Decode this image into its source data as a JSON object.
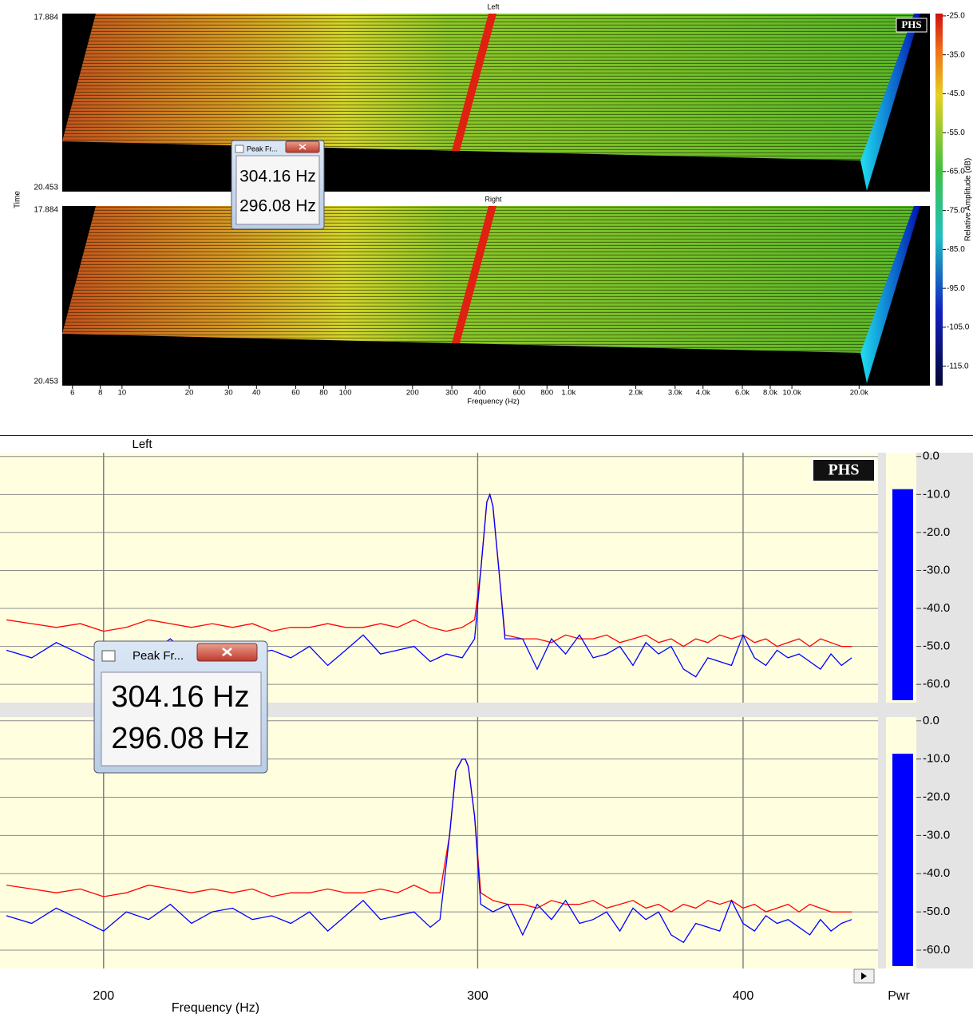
{
  "waterfall": {
    "type": "waterfall",
    "panels": [
      "Left",
      "Right"
    ],
    "ylabel": "Time",
    "ylim": [
      17.884,
      20.453
    ],
    "yticks": [
      17.884,
      20.453
    ],
    "xlabel": "Frequency (Hz)",
    "xscale": "log",
    "xlim": [
      5.4,
      41500
    ],
    "xticks": [
      6,
      8,
      10,
      20,
      30,
      40,
      60,
      80,
      100,
      200,
      300,
      400,
      600,
      800,
      {
        "value": 1000,
        "label": "1.0k"
      },
      {
        "value": 2000,
        "label": "2.0k"
      },
      {
        "value": 3000,
        "label": "3.0k"
      },
      {
        "value": 4000,
        "label": "4.0k"
      },
      {
        "value": 6000,
        "label": "6.0k"
      },
      {
        "value": 8000,
        "label": "8.0k"
      },
      {
        "value": 10000,
        "label": "10.0k"
      },
      {
        "value": 20000,
        "label": "20.0k"
      }
    ],
    "colorbar": {
      "label": "Relative Amplitude (dB)",
      "lim": [
        -120,
        -24.4
      ],
      "ticks": [
        {
          "value": -25,
          "label": "-25.0"
        },
        {
          "value": -35,
          "label": "-35.0"
        },
        {
          "value": -45,
          "label": "-45.0"
        },
        {
          "value": -55,
          "label": "-55.0"
        },
        {
          "value": -65,
          "label": "-65.0"
        },
        {
          "value": -75,
          "label": "-75.0"
        },
        {
          "value": -85,
          "label": "-85.0"
        },
        {
          "value": -95,
          "label": "-95.0"
        },
        {
          "value": -105,
          "label": "-105.0"
        },
        {
          "value": -115,
          "label": "-115.0"
        }
      ]
    }
  },
  "logo": "PHS",
  "popup": {
    "title": "Peak Fr...",
    "lines": [
      "304.16 Hz",
      "296.08 Hz"
    ]
  },
  "chart_data": [
    {
      "type": "line",
      "title": "Left",
      "xscale": "log",
      "xlim": [
        180,
        463
      ],
      "xticks": [
        200,
        300,
        400
      ],
      "xtick_labels": false,
      "ylim": [
        -64.8,
        1
      ],
      "yticks": [
        {
          "value": 0,
          "label": "0.0"
        },
        {
          "value": -10,
          "label": "-10.0"
        },
        {
          "value": -20,
          "label": "-20.0"
        },
        {
          "value": -30,
          "label": "-30.0"
        },
        {
          "value": -40,
          "label": "-40.0"
        },
        {
          "value": -50,
          "label": "-50.0"
        },
        {
          "value": -60,
          "label": "-60.0"
        }
      ],
      "grid": true,
      "x": [
        180,
        185,
        190,
        195,
        200,
        205,
        210,
        215,
        220,
        225,
        230,
        235,
        240,
        245,
        250,
        255,
        260,
        265,
        270,
        275,
        280,
        285,
        290,
        295,
        299,
        301,
        303,
        304,
        305,
        307,
        309,
        315,
        320,
        325,
        330,
        335,
        340,
        345,
        350,
        355,
        360,
        365,
        370,
        375,
        380,
        385,
        390,
        395,
        400,
        405,
        410,
        415,
        420,
        425,
        430,
        435,
        440,
        445,
        450
      ],
      "series": [
        {
          "color": "#ff0000",
          "values": [
            -43,
            -44,
            -45,
            -44,
            -46,
            -45,
            -43,
            -44,
            -45,
            -44,
            -45,
            -44,
            -46,
            -45,
            -45,
            -44,
            -45,
            -45,
            -44,
            -45,
            -43,
            -45,
            -46,
            -45,
            -43,
            -30,
            -12,
            -10,
            -13,
            -30,
            -47,
            -48,
            -48,
            -49,
            -47,
            -48,
            -48,
            -47,
            -49,
            -48,
            -47,
            -49,
            -48,
            -50,
            -48,
            -49,
            -47,
            -48,
            -47,
            -49,
            -48,
            -50,
            -49,
            -48,
            -50,
            -48,
            -49,
            -50,
            -50
          ]
        },
        {
          "color": "#0000ff",
          "values": [
            -51,
            -53,
            -49,
            -52,
            -55,
            -50,
            -52,
            -48,
            -53,
            -50,
            -49,
            -52,
            -51,
            -53,
            -50,
            -55,
            -51,
            -47,
            -52,
            -51,
            -50,
            -54,
            -52,
            -53,
            -48,
            -30,
            -12,
            -10,
            -13,
            -30,
            -48,
            -48,
            -56,
            -48,
            -52,
            -47,
            -53,
            -52,
            -50,
            -55,
            -49,
            -52,
            -50,
            -56,
            -58,
            -53,
            -54,
            -55,
            -47,
            -53,
            -55,
            -51,
            -53,
            -52,
            -54,
            -56,
            -52,
            -55,
            -53
          ]
        }
      ],
      "power": {
        "value": -8.6,
        "color": "#0000ff"
      }
    },
    {
      "type": "line",
      "xlabel": "Frequency (Hz)",
      "xscale": "log",
      "xlim": [
        180,
        463
      ],
      "xticks": [
        200,
        300,
        400
      ],
      "xtick_labels": true,
      "ylim": [
        -64.8,
        1
      ],
      "yticks": [
        {
          "value": 0,
          "label": "0.0"
        },
        {
          "value": -10,
          "label": "-10.0"
        },
        {
          "value": -20,
          "label": "-20.0"
        },
        {
          "value": -30,
          "label": "-30.0"
        },
        {
          "value": -40,
          "label": "-40.0"
        },
        {
          "value": -50,
          "label": "-50.0"
        },
        {
          "value": -60,
          "label": "-60.0"
        }
      ],
      "grid": true,
      "x": [
        180,
        185,
        190,
        195,
        200,
        205,
        210,
        215,
        220,
        225,
        230,
        235,
        240,
        245,
        250,
        255,
        260,
        265,
        270,
        275,
        280,
        285,
        288,
        291,
        293,
        295,
        296,
        297,
        299,
        301,
        305,
        310,
        315,
        320,
        325,
        330,
        335,
        340,
        345,
        350,
        355,
        360,
        365,
        370,
        375,
        380,
        385,
        390,
        395,
        400,
        405,
        410,
        415,
        420,
        425,
        430,
        435,
        440,
        445,
        450
      ],
      "series": [
        {
          "color": "#ff0000",
          "values": [
            -43,
            -44,
            -45,
            -44,
            -46,
            -45,
            -43,
            -44,
            -45,
            -44,
            -45,
            -44,
            -46,
            -45,
            -45,
            -44,
            -45,
            -45,
            -44,
            -45,
            -43,
            -45,
            -45,
            -30,
            -13,
            -10,
            -10,
            -12,
            -25,
            -45,
            -47,
            -48,
            -48,
            -49,
            -47,
            -48,
            -48,
            -47,
            -49,
            -48,
            -47,
            -49,
            -48,
            -50,
            -48,
            -49,
            -47,
            -48,
            -47,
            -49,
            -48,
            -50,
            -49,
            -48,
            -50,
            -48,
            -49,
            -50,
            -50,
            -50
          ]
        },
        {
          "color": "#0000ff",
          "values": [
            -51,
            -53,
            -49,
            -52,
            -55,
            -50,
            -52,
            -48,
            -53,
            -50,
            -49,
            -52,
            -51,
            -53,
            -50,
            -55,
            -51,
            -47,
            -52,
            -51,
            -50,
            -54,
            -52,
            -30,
            -13,
            -10,
            -10,
            -12,
            -25,
            -48,
            -50,
            -48,
            -56,
            -48,
            -52,
            -47,
            -53,
            -52,
            -50,
            -55,
            -49,
            -52,
            -50,
            -56,
            -58,
            -53,
            -54,
            -55,
            -47,
            -53,
            -55,
            -51,
            -53,
            -52,
            -54,
            -56,
            -52,
            -55,
            -53,
            -52
          ]
        }
      ],
      "power": {
        "label": "Pwr",
        "value": -8.6,
        "color": "#0000ff"
      }
    }
  ]
}
